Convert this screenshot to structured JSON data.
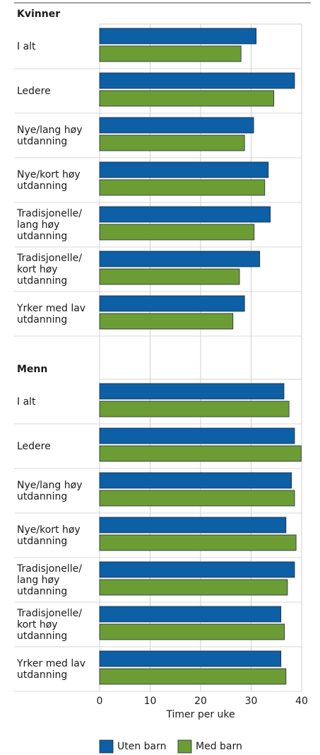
{
  "chart_data": [
    {
      "type": "bar",
      "orientation": "horizontal",
      "title": "Kvinner",
      "categories": [
        "I alt",
        "Ledere",
        "Nye/lang høy\nutdanning",
        "Nye/kort høy\nutdanning",
        "Tradisjonelle/\nlang høy\nutdanning",
        "Tradisjonelle/\nkort høy\nutdanning",
        "Yrker med lav\nutdanning"
      ],
      "series": [
        {
          "color": "#0d5fa6",
          "values": [
            31,
            38.6,
            30.5,
            33.4,
            33.8,
            31.7,
            28.7
          ]
        },
        {
          "color": "#6c9d35",
          "values": [
            28,
            34.5,
            28.7,
            32.7,
            30.6,
            27.7,
            26.4
          ]
        }
      ],
      "xlim": [
        0,
        40
      ],
      "xticks": [
        0,
        10,
        20,
        30,
        40
      ],
      "grid": true
    },
    {
      "type": "bar",
      "orientation": "horizontal",
      "title": "Menn",
      "categories": [
        "I alt",
        "Ledere",
        "Nye/lang høy\nutdanning",
        "Nye/kort høy\nutdanning",
        "Tradisjonelle/\nlang høy\nutdanning",
        "Tradisjonelle/\nkort høy\nutdanning",
        "Yrker med lav\nutdanning"
      ],
      "series": [
        {
          "name": "Uten barn",
          "color": "#0d5fa6",
          "values": [
            36.5,
            38.6,
            38,
            36.9,
            38.6,
            35.9,
            35.9
          ]
        },
        {
          "name": "Med barn",
          "color": "#6c9d35",
          "values": [
            37.5,
            39.9,
            38.6,
            38.9,
            37.2,
            36.6,
            36.9
          ]
        }
      ],
      "xlim": [
        0,
        40
      ],
      "xticks": [
        0,
        10,
        20,
        30,
        40
      ],
      "grid": true,
      "xlabel": "Timer per uke",
      "legend": "bottom"
    }
  ]
}
